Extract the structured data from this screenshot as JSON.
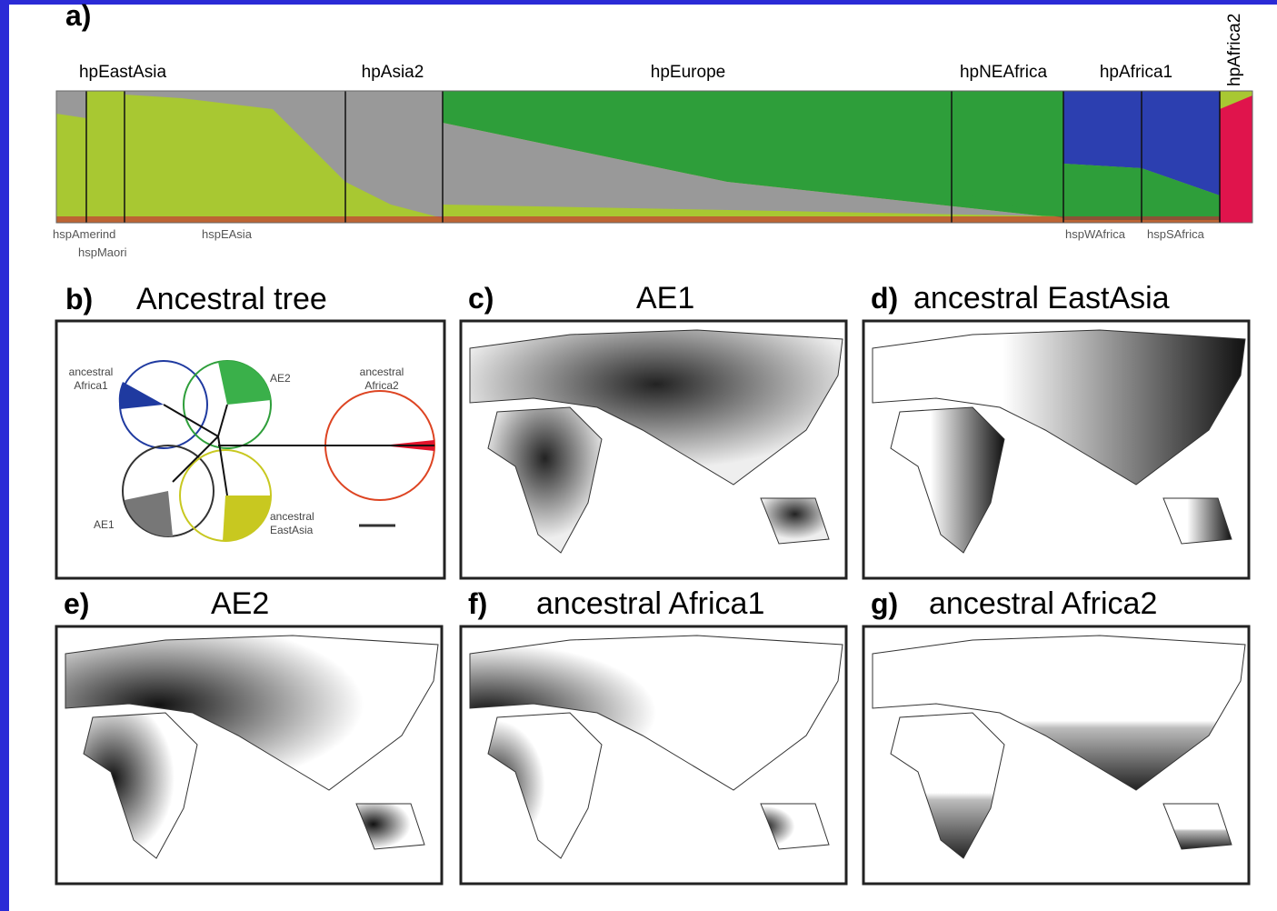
{
  "panel_a": {
    "label": "a)",
    "populations": [
      "hpEastAsia",
      "hpAsia2",
      "hpEurope",
      "hpNEAfrica",
      "hpAfrica1",
      "hpAfrica2"
    ],
    "subpopulations": [
      "hspAmerind",
      "hspMaori",
      "hspEAsia",
      "hspWAfrica",
      "hspSAfrica"
    ]
  },
  "panel_b": {
    "label": "b)",
    "title": "Ancestral tree",
    "nodes": [
      {
        "label": [
          "ancestral",
          "Africa1"
        ]
      },
      {
        "label": [
          "AE2"
        ]
      },
      {
        "label": [
          "ancestral",
          "Africa2"
        ]
      },
      {
        "label": [
          "AE1"
        ]
      },
      {
        "label": [
          "ancestral",
          "EastAsia"
        ]
      }
    ]
  },
  "maps": [
    {
      "label": "c)",
      "title": "AE1"
    },
    {
      "label": "d)",
      "title": "ancestral EastAsia"
    },
    {
      "label": "e)",
      "title": "AE2"
    },
    {
      "label": "f)",
      "title": "ancestral Africa1"
    },
    {
      "label": "g)",
      "title": "ancestral Africa2"
    }
  ]
}
